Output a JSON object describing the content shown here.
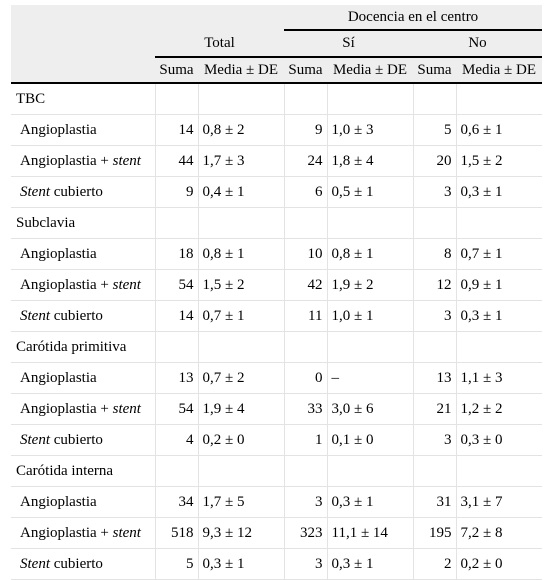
{
  "header": {
    "group_top": "Docencia en el centro",
    "total": "Total",
    "si": "Sí",
    "no": "No",
    "suma": "Suma",
    "media": "Media ± DE"
  },
  "sections": [
    {
      "label": "TBC",
      "rows": [
        {
          "pre": "Angioplastia",
          "ital": "",
          "post": "",
          "values": [
            "14",
            "0,8 ± 2",
            "9",
            "1,0 ± 3",
            "5",
            "0,6 ± 1"
          ]
        },
        {
          "pre": "Angioplastia + ",
          "ital": "stent",
          "post": "",
          "values": [
            "44",
            "1,7 ± 3",
            "24",
            "1,8 ± 4",
            "20",
            "1,5 ± 2"
          ]
        },
        {
          "pre": "",
          "ital": "Stent",
          "post": " cubierto",
          "values": [
            "9",
            "0,4 ± 1",
            "6",
            "0,5 ± 1",
            "3",
            "0,3 ± 1"
          ]
        }
      ]
    },
    {
      "label": "Subclavia",
      "rows": [
        {
          "pre": "Angioplastia",
          "ital": "",
          "post": "",
          "values": [
            "18",
            "0,8 ± 1",
            "10",
            "0,8 ± 1",
            "8",
            "0,7 ± 1"
          ]
        },
        {
          "pre": "Angioplastia + ",
          "ital": "stent",
          "post": "",
          "values": [
            "54",
            "1,5 ± 2",
            "42",
            "1,9 ± 2",
            "12",
            "0,9 ± 1"
          ]
        },
        {
          "pre": "",
          "ital": "Stent",
          "post": " cubierto",
          "values": [
            "14",
            "0,7 ± 1",
            "11",
            "1,0 ± 1",
            "3",
            "0,3 ± 1"
          ]
        }
      ]
    },
    {
      "label": "Carótida primitiva",
      "rows": [
        {
          "pre": "Angioplastia",
          "ital": "",
          "post": "",
          "values": [
            "13",
            "0,7 ± 2",
            "0",
            "–",
            "13",
            "1,1 ± 3"
          ]
        },
        {
          "pre": "Angioplastia + ",
          "ital": "stent",
          "post": "",
          "values": [
            "54",
            "1,9 ± 4",
            "33",
            "3,0 ± 6",
            "21",
            "1,2 ± 2"
          ]
        },
        {
          "pre": "",
          "ital": "Stent",
          "post": " cubierto",
          "values": [
            "4",
            "0,2 ± 0",
            "1",
            "0,1 ± 0",
            "3",
            "0,3 ± 0"
          ]
        }
      ]
    },
    {
      "label": "Carótida interna",
      "rows": [
        {
          "pre": "Angioplastia",
          "ital": "",
          "post": "",
          "values": [
            "34",
            "1,7 ± 5",
            "3",
            "0,3 ± 1",
            "31",
            "3,1 ± 7"
          ]
        },
        {
          "pre": "Angioplastia + ",
          "ital": "stent",
          "post": "",
          "values": [
            "518",
            "9,3 ± 12",
            "323",
            "11,1 ± 14",
            "195",
            "7,2 ± 8"
          ]
        },
        {
          "pre": "",
          "ital": "Stent",
          "post": " cubierto",
          "values": [
            "5",
            "0,3 ± 1",
            "3",
            "0,3 ± 1",
            "2",
            "0,2 ± 0"
          ]
        }
      ]
    }
  ]
}
